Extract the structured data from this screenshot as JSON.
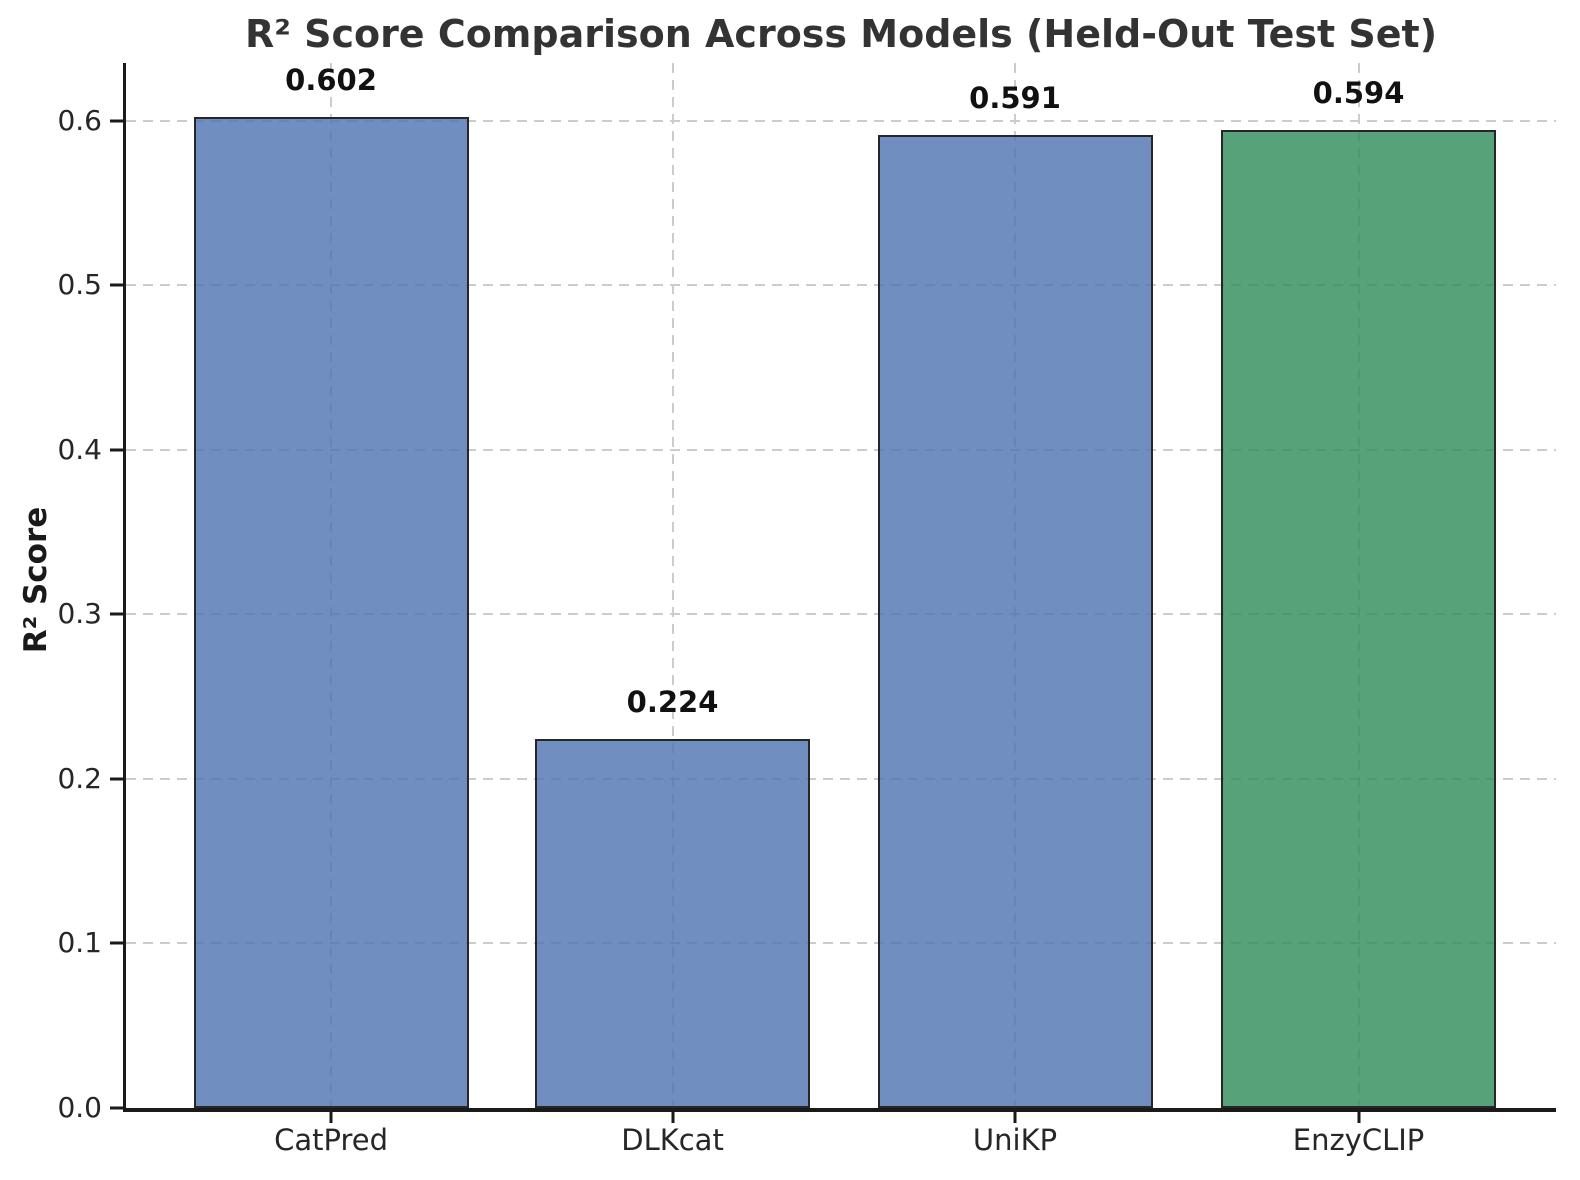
{
  "chart_data": {
    "type": "bar",
    "title": "R² Score Comparison Across Models (Held-Out Test Set)",
    "xlabel": "",
    "ylabel": "R² Score",
    "categories": [
      "CatPred",
      "DLKcat",
      "UniKP",
      "EnzyCLIP"
    ],
    "values": [
      0.602,
      0.224,
      0.591,
      0.594
    ],
    "value_labels": [
      "0.602",
      "0.224",
      "0.591",
      "0.594"
    ],
    "series": [
      {
        "name": "R² Score",
        "values": [
          0.602,
          0.224,
          0.591,
          0.594
        ]
      }
    ],
    "yticks": [
      0.0,
      0.1,
      0.2,
      0.3,
      0.4,
      0.5,
      0.6
    ],
    "ytick_labels": [
      "0.0",
      "0.1",
      "0.2",
      "0.3",
      "0.4",
      "0.5",
      "0.6"
    ],
    "ylim": [
      0,
      0.635
    ],
    "grid": true,
    "grid_style": "dashed",
    "legend_position": "none",
    "colors": {
      "bar_fill": [
        "#4C72B0",
        "#4C72B0",
        "#4C72B0",
        "#2E8B57"
      ],
      "bar_alpha": 0.8,
      "bar_edge": "#262626",
      "grid": "#cccccc",
      "axis": "#1a1a1a",
      "title_text": "#333333",
      "tick_text": "#262626",
      "value_text": "#111111",
      "background": "#ffffff"
    }
  }
}
